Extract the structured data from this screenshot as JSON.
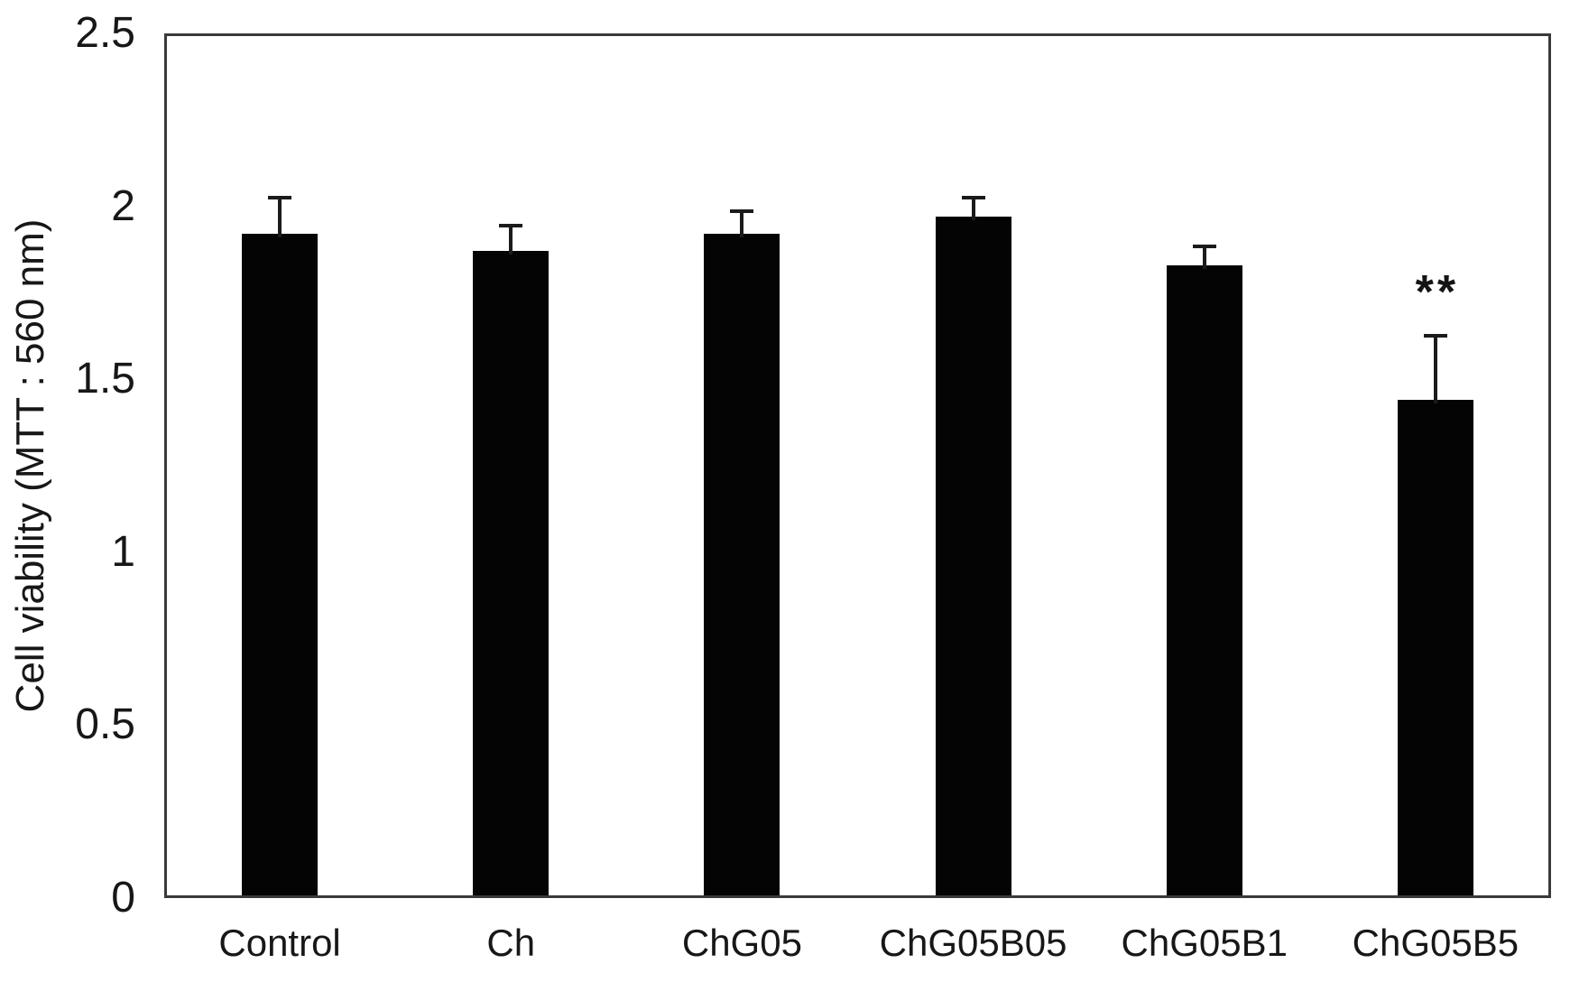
{
  "chart_data": {
    "type": "bar",
    "title": "",
    "xlabel": "",
    "ylabel": "Cell viability (MTT : 560 nm)",
    "ylim": [
      0,
      2.5
    ],
    "yticks": [
      0,
      0.5,
      1,
      1.5,
      2,
      2.5
    ],
    "ytick_labels": [
      "0",
      "0.5",
      "1",
      "1.5",
      "2",
      "2.5"
    ],
    "categories": [
      "Control",
      "Ch",
      "ChG05",
      "ChG05B05",
      "ChG05B1",
      "ChG05B5"
    ],
    "values": [
      1.92,
      1.87,
      1.92,
      1.97,
      1.83,
      1.44
    ],
    "errors": [
      0.11,
      0.08,
      0.07,
      0.06,
      0.06,
      0.19
    ],
    "annotations": [
      {
        "category": "ChG05B5",
        "category_index": 5,
        "text": "**"
      }
    ],
    "bar_color": "#040404",
    "error_bar_color": "#1b1b1b",
    "grid": false,
    "legend": null
  }
}
